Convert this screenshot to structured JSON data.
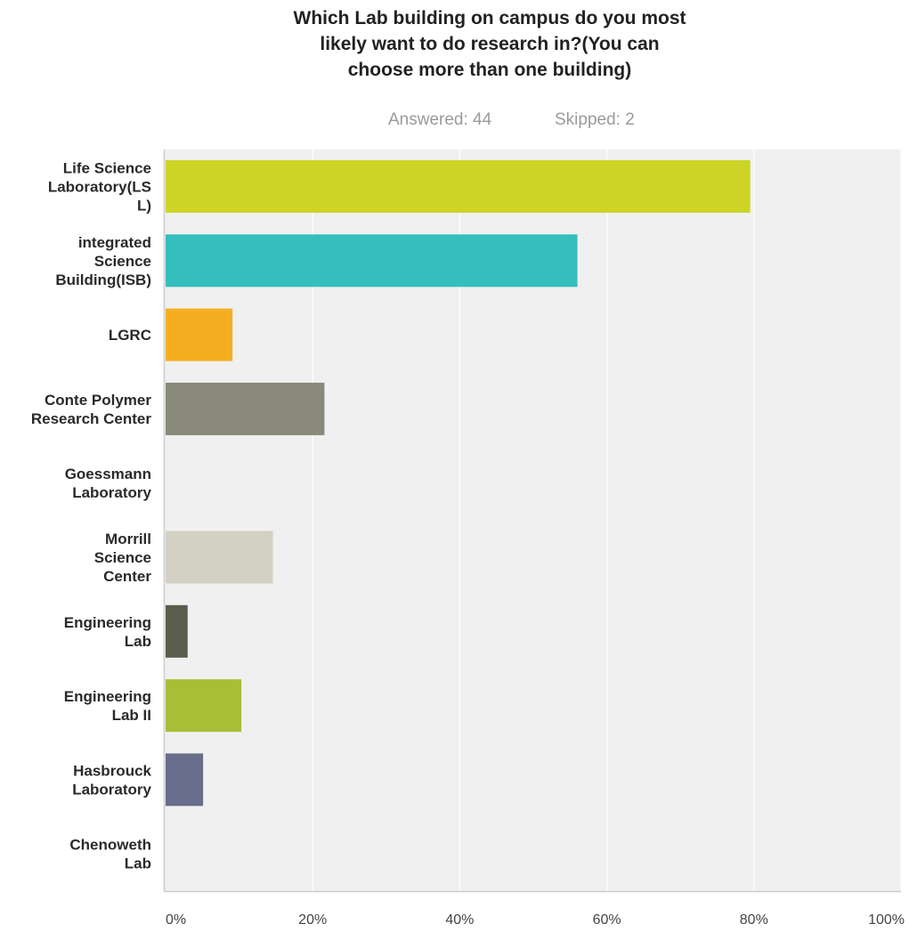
{
  "chart_data": {
    "type": "bar",
    "orientation": "horizontal",
    "title_lines": [
      "Which Lab building on campus do you most",
      "likely want to do research in?(You can",
      "choose more than one building)"
    ],
    "answered": "Answered: 44",
    "skipped": "Skipped: 2",
    "categories": [
      "Life Science Laboratory(LSL)",
      "integrated Science Building(ISB)",
      "LGRC",
      "Conte Polymer Research Center",
      "Goessmann Laboratory",
      "Morrill Science Center",
      "Engineering Lab",
      "Engineering Lab II",
      "Hasbrouck Laboratory",
      "Chenoweth Lab"
    ],
    "category_label_lines": [
      [
        "Life Science",
        "Laboratory(LS",
        "L)"
      ],
      [
        "integrated",
        "Science",
        "Building(ISB)"
      ],
      [
        "LGRC"
      ],
      [
        "Conte Polymer",
        "Research Center"
      ],
      [
        "Goessmann",
        "Laboratory"
      ],
      [
        "Morrill",
        "Science",
        "Center"
      ],
      [
        "Engineering",
        "Lab"
      ],
      [
        "Engineering",
        "Lab II"
      ],
      [
        "Hasbrouck",
        "Laboratory"
      ],
      [
        "Chenoweth",
        "Lab"
      ]
    ],
    "values": [
      79.5,
      56,
      9.1,
      21.6,
      0,
      14.6,
      3,
      10.3,
      5.1,
      0
    ],
    "unit": "%",
    "xlim": [
      0,
      100
    ],
    "x_ticks": [
      0,
      20,
      40,
      60,
      80,
      100
    ],
    "x_tick_labels": [
      "0%",
      "20%",
      "40%",
      "60%",
      "80%",
      "100%"
    ],
    "grid": true,
    "legend": "none",
    "colors": [
      "#cdd426",
      "#34bebd",
      "#f6ae21",
      "#898a7c",
      "#d9d8c0",
      "#d2d1c4",
      "#5c5c4c",
      "#a9be37",
      "#676d8a",
      "#c9c9c9"
    ],
    "background_color": "#f0f0f0",
    "gridline_color": "#ffffff",
    "axis_color": "#cccccc"
  }
}
